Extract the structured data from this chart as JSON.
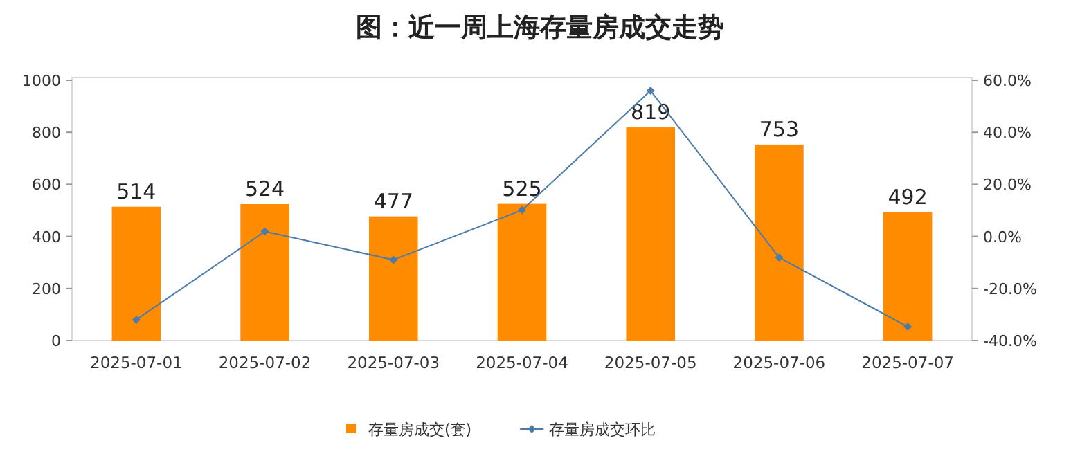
{
  "chart_data": {
    "type": "bar",
    "title": "图：近一周上海存量房成交走势",
    "categories": [
      "2025-07-01",
      "2025-07-02",
      "2025-07-03",
      "2025-07-04",
      "2025-07-05",
      "2025-07-06",
      "2025-07-07"
    ],
    "series": [
      {
        "name": "存量房成交(套)",
        "color": "#ff8c00",
        "values": [
          514,
          524,
          477,
          525,
          819,
          753,
          492
        ],
        "value_labels": [
          "514",
          "524",
          "477",
          "525",
          "819",
          "753",
          "492"
        ]
      },
      {
        "name": "存量房成交环比",
        "type": "line",
        "axis": "y2",
        "color": "#4a7bab",
        "marker": "diamond",
        "values": [
          -32,
          1.9,
          -9.0,
          10.1,
          56.0,
          -8.1,
          -34.7
        ]
      }
    ],
    "legend": "bottom",
    "ylim": [
      0,
      1000
    ],
    "yticks": [
      0,
      200,
      400,
      600,
      800,
      1000
    ],
    "y2lim": [
      -40,
      60
    ],
    "y2ticks": [
      {
        "value": -40,
        "label": "-40.0%"
      },
      {
        "value": -20,
        "label": "-20.0%"
      },
      {
        "value": 0,
        "label": "0.0%"
      },
      {
        "value": 20,
        "label": "20.0%"
      },
      {
        "value": 40,
        "label": "40.0%"
      },
      {
        "value": 60,
        "label": "60.0%"
      }
    ]
  }
}
